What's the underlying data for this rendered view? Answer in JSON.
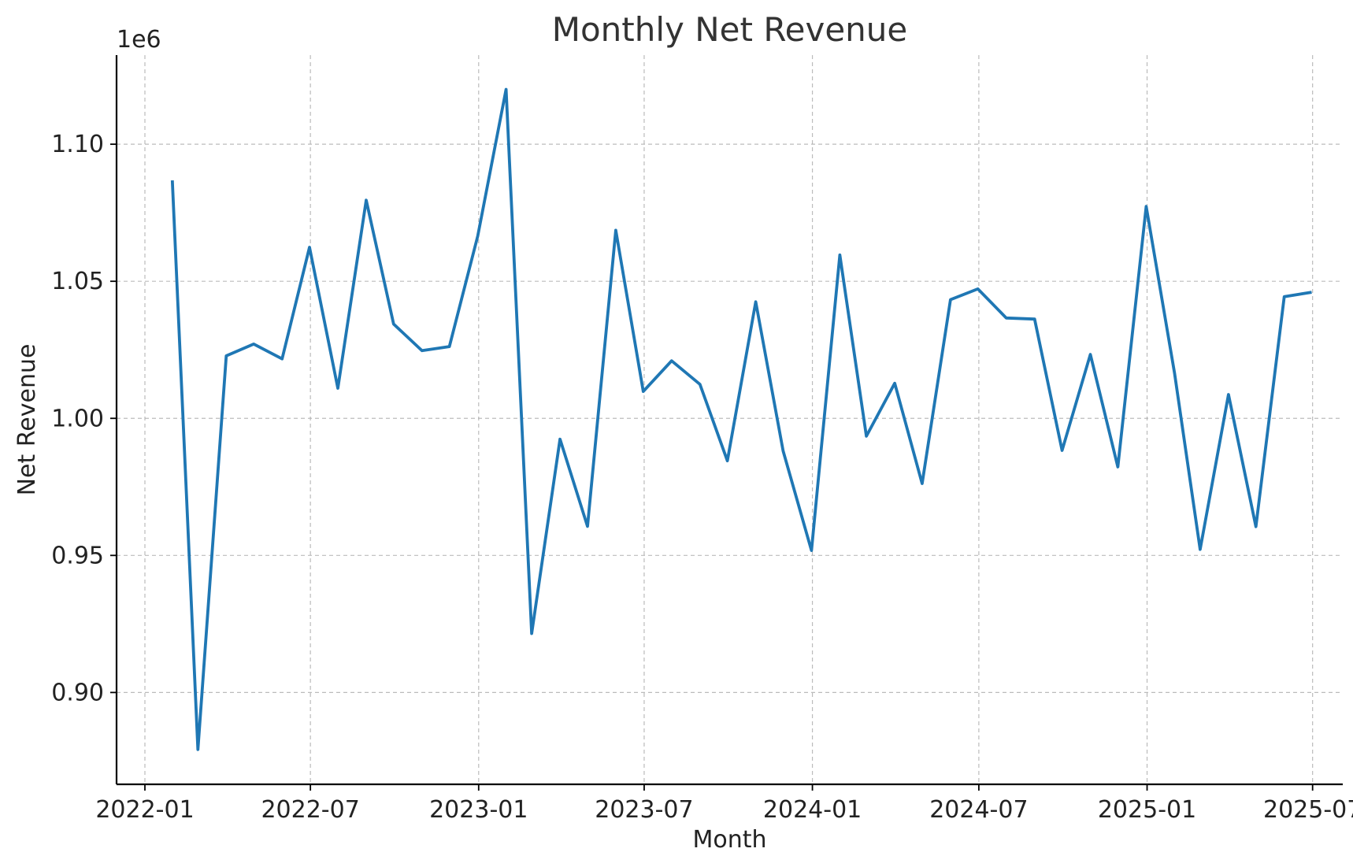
{
  "chart_data": {
    "type": "line",
    "title": "Monthly Net Revenue",
    "xlabel": "Month",
    "ylabel": "Net Revenue",
    "y_offset_label": "1e6",
    "grid": true,
    "x_tick_labels": [
      "2022-01",
      "2022-07",
      "2023-01",
      "2023-07",
      "2024-01",
      "2024-07",
      "2025-01",
      "2025-07"
    ],
    "y_ticks": [
      0.9,
      0.95,
      1.0,
      1.05,
      1.1
    ],
    "y_tick_labels": [
      "0.90",
      "0.95",
      "1.00",
      "1.05",
      "1.10"
    ],
    "xlim": [
      "2021-12-01",
      "2025-08-03"
    ],
    "ylim": [
      0.8665,
      1.1325
    ],
    "color": "#1f77b4",
    "x": [
      "2022-01-31",
      "2022-02-28",
      "2022-03-31",
      "2022-04-30",
      "2022-05-31",
      "2022-06-30",
      "2022-07-31",
      "2022-08-31",
      "2022-09-30",
      "2022-10-31",
      "2022-11-30",
      "2022-12-31",
      "2023-01-31",
      "2023-02-28",
      "2023-03-31",
      "2023-04-30",
      "2023-05-31",
      "2023-06-30",
      "2023-07-31",
      "2023-08-31",
      "2023-09-30",
      "2023-10-31",
      "2023-11-30",
      "2023-12-31",
      "2024-01-31",
      "2024-02-29",
      "2024-03-31",
      "2024-04-30",
      "2024-05-31",
      "2024-06-30",
      "2024-07-31",
      "2024-08-31",
      "2024-09-30",
      "2024-10-31",
      "2024-11-30",
      "2024-12-31",
      "2025-01-31",
      "2025-02-28",
      "2025-03-31",
      "2025-04-30",
      "2025-05-31",
      "2025-06-30"
    ],
    "series": [
      {
        "values": [
          1.0868,
          0.8792,
          1.0228,
          1.0271,
          1.0217,
          1.0624,
          1.011,
          1.0796,
          1.0344,
          1.0247,
          1.0262,
          1.0665,
          1.12,
          0.9215,
          0.9924,
          0.9606,
          1.0686,
          1.0098,
          1.021,
          1.0124,
          0.9845,
          1.0425,
          0.9881,
          0.9518,
          1.0596,
          0.9935,
          1.0128,
          0.9762,
          1.0433,
          1.0472,
          1.0366,
          1.0362,
          0.9883,
          1.0233,
          0.9823,
          1.0773,
          1.0165,
          0.9522,
          1.0087,
          0.9605,
          1.0444,
          1.046
        ]
      }
    ]
  }
}
